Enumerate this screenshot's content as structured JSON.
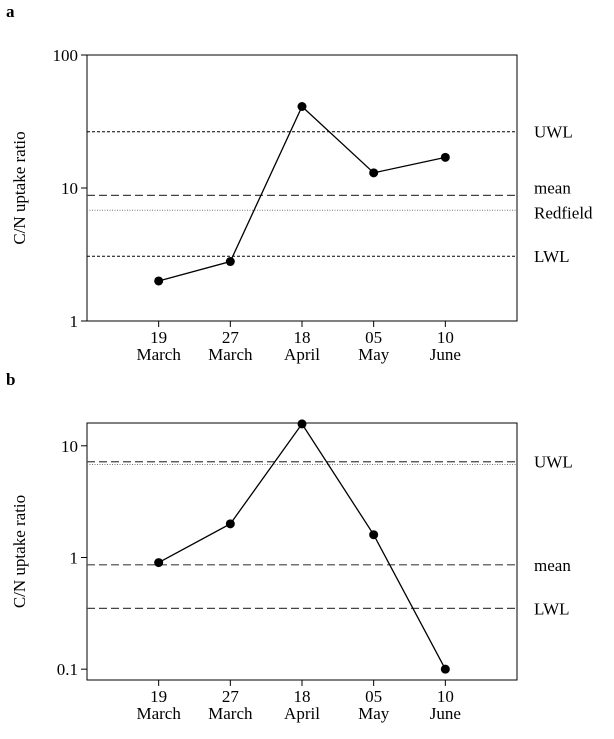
{
  "chart_data": [
    {
      "type": "line",
      "panel": "a",
      "ylabel": "C/N uptake ratio",
      "log_y": true,
      "categories": [
        [
          "19",
          "March"
        ],
        [
          "27",
          "March"
        ],
        [
          "18",
          "April"
        ],
        [
          "05",
          "May"
        ],
        [
          "10",
          "June"
        ]
      ],
      "values": [
        2.0,
        2.8,
        41,
        13,
        17
      ],
      "color": "#000000",
      "ylim": [
        1,
        100
      ],
      "yticks": [
        1,
        10,
        100
      ],
      "hlines": [
        {
          "label": "UWL",
          "value": 26.5,
          "style": "dotted"
        },
        {
          "label": "mean",
          "value": 8.8,
          "style": "dashed"
        },
        {
          "label": "Redfield",
          "value": 6.8,
          "style": "fine"
        },
        {
          "label": "LWL",
          "value": 3.07,
          "style": "dotted"
        }
      ]
    },
    {
      "type": "line",
      "panel": "b",
      "ylabel": "C/N uptake ratio",
      "log_y": true,
      "categories": [
        [
          "19",
          "March"
        ],
        [
          "27",
          "March"
        ],
        [
          "18",
          "April"
        ],
        [
          "05",
          "May"
        ],
        [
          "10",
          "June"
        ]
      ],
      "values": [
        0.9,
        2.0,
        15.7,
        1.6,
        0.1
      ],
      "color": "#000000",
      "ylim": [
        0.08,
        16
      ],
      "yticks": [
        0.1,
        1,
        10
      ],
      "hlines": [
        {
          "label": "UWL",
          "value": 7.2,
          "style": "dashed"
        },
        {
          "value": 6.8,
          "style": "fine"
        },
        {
          "label": "mean",
          "value": 0.86,
          "style": "dashed"
        },
        {
          "label": "LWL",
          "value": 0.35,
          "style": "dashed"
        }
      ]
    }
  ]
}
